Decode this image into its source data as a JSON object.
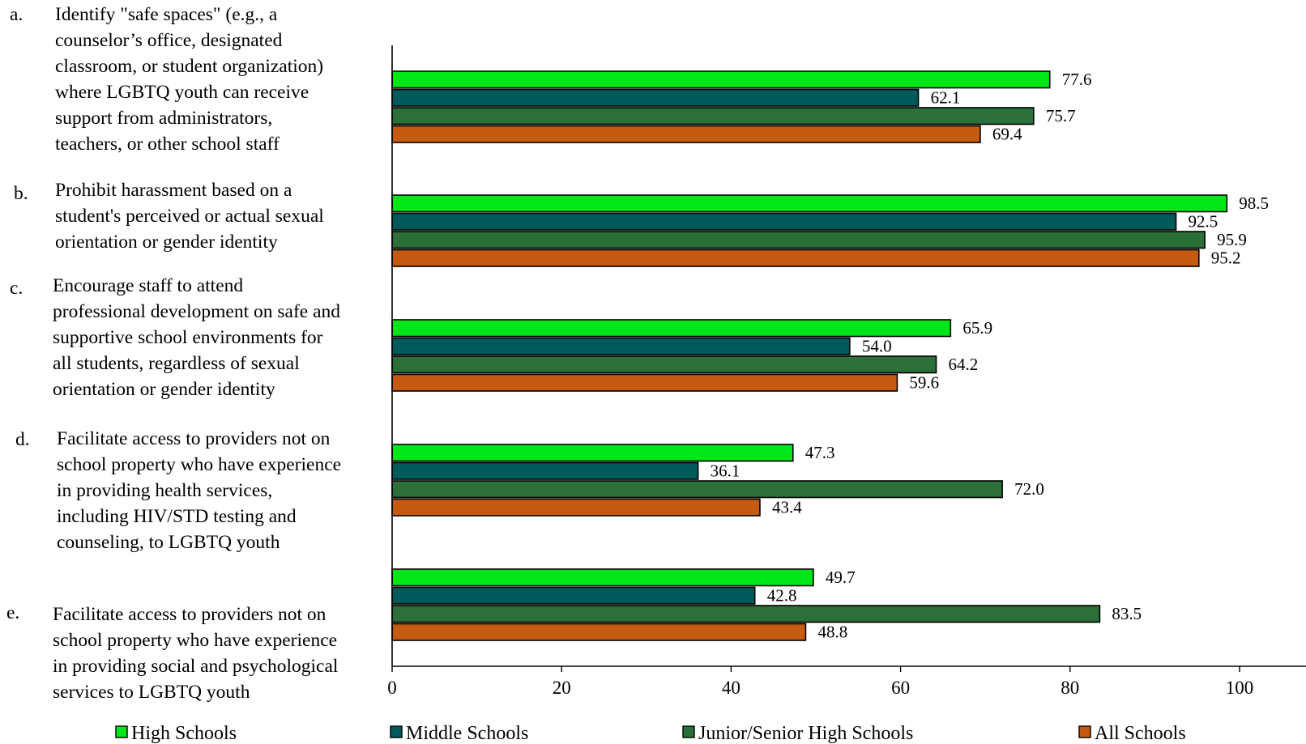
{
  "chart_data": {
    "type": "bar",
    "orientation": "horizontal",
    "xlim": [
      0,
      100
    ],
    "x_ticks": [
      "0",
      "20",
      "40",
      "60",
      "80",
      "100"
    ],
    "grid": false,
    "legend_position": "bottom",
    "categories": [
      {
        "letter": "a.",
        "lines": [
          "Identify \"safe spaces\" (e.g., a",
          "counselor’s office, designated",
          "classroom, or student organization)",
          "where LGBTQ youth can receive",
          "support from administrators,",
          "teachers, or other school staff"
        ]
      },
      {
        "letter": "b.",
        "lines": [
          "Prohibit harassment based on a",
          "student's perceived or actual sexual",
          "orientation or gender identity"
        ]
      },
      {
        "letter": "c.",
        "lines": [
          "Encourage staff to attend",
          "professional development on safe and",
          "supportive school environments for",
          "all students, regardless of sexual",
          "orientation or gender identity"
        ]
      },
      {
        "letter": "d.",
        "lines": [
          "Facilitate access to providers not on",
          "school property who have experience",
          "in providing health services,",
          "including HIV/STD testing and",
          "counseling, to LGBTQ youth"
        ]
      },
      {
        "letter": "e.",
        "lines": [
          "Facilitate access to providers not on",
          "school property who have experience",
          "in providing social and psychological",
          "services to LGBTQ youth"
        ]
      }
    ],
    "series": [
      {
        "name": "High Schools",
        "color": "#00e619",
        "values": [
          77.6,
          98.5,
          65.9,
          47.3,
          49.7
        ],
        "labels": [
          "77.6",
          "98.5",
          "65.9",
          "47.3",
          "49.7"
        ]
      },
      {
        "name": "Middle Schools",
        "color": "#005a5a",
        "values": [
          62.1,
          92.5,
          54.0,
          36.1,
          42.8
        ],
        "labels": [
          "62.1",
          "92.5",
          "54.0",
          "36.1",
          "42.8"
        ]
      },
      {
        "name": "Junior/Senior High Schools",
        "color": "#2a7038",
        "values": [
          75.7,
          95.9,
          64.2,
          72.0,
          83.5
        ],
        "labels": [
          "75.7",
          "95.9",
          "64.2",
          "72.0",
          "83.5"
        ]
      },
      {
        "name": "All Schools",
        "color": "#c55a11",
        "values": [
          69.4,
          95.2,
          59.6,
          43.4,
          48.8
        ],
        "labels": [
          "69.4",
          "95.2",
          "59.6",
          "43.4",
          "48.8"
        ]
      }
    ]
  }
}
